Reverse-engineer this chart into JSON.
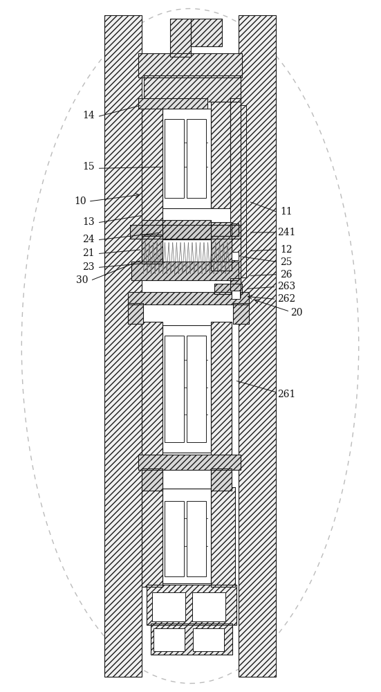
{
  "bg_color": "#ffffff",
  "lc": "#1a1a1a",
  "fig_width": 5.51,
  "fig_height": 10.0
}
